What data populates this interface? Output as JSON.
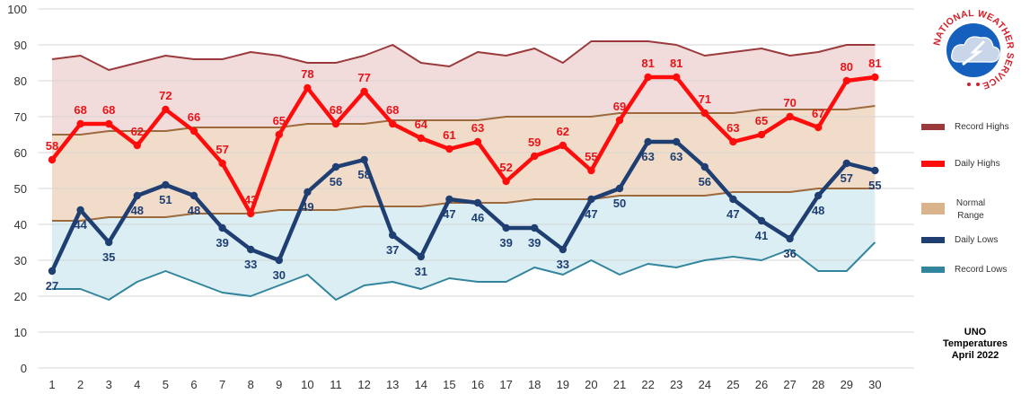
{
  "chart_data": {
    "type": "line",
    "x": [
      1,
      2,
      3,
      4,
      5,
      6,
      7,
      8,
      9,
      10,
      11,
      12,
      13,
      14,
      15,
      16,
      17,
      18,
      19,
      20,
      21,
      22,
      23,
      24,
      25,
      26,
      27,
      28,
      29,
      30
    ],
    "ylim": [
      0,
      100
    ],
    "yticks": [
      0,
      10,
      20,
      30,
      40,
      50,
      60,
      70,
      80,
      90,
      100
    ],
    "grid": true,
    "legend_position": "right",
    "series": [
      {
        "name": "Record Highs",
        "color": "#9b3a3c",
        "values": [
          86,
          87,
          83,
          85,
          87,
          86,
          86,
          88,
          87,
          85,
          85,
          87,
          90,
          85,
          84,
          88,
          87,
          89,
          85,
          91,
          91,
          91,
          90,
          87,
          88,
          89,
          87,
          88,
          90,
          90
        ]
      },
      {
        "name": "Daily Highs",
        "color": "#ff0d0d",
        "values": [
          58,
          68,
          68,
          62,
          72,
          66,
          57,
          43,
          65,
          78,
          68,
          77,
          68,
          64,
          61,
          63,
          52,
          59,
          62,
          55,
          69,
          81,
          81,
          71,
          63,
          65,
          70,
          67,
          80,
          81
        ]
      },
      {
        "name": "Normal Range",
        "color": "#d9b38c",
        "upper": [
          65,
          65,
          66,
          66,
          66,
          67,
          67,
          67,
          67,
          68,
          68,
          68,
          69,
          69,
          69,
          69,
          70,
          70,
          70,
          70,
          71,
          71,
          71,
          71,
          71,
          72,
          72,
          72,
          72,
          73
        ],
        "lower": [
          41,
          41,
          42,
          42,
          42,
          43,
          43,
          43,
          44,
          44,
          44,
          45,
          45,
          45,
          46,
          46,
          46,
          47,
          47,
          47,
          48,
          48,
          48,
          48,
          49,
          49,
          49,
          50,
          50,
          50
        ]
      },
      {
        "name": "Daily Lows",
        "color": "#1f3f73",
        "values": [
          27,
          44,
          35,
          48,
          51,
          48,
          39,
          33,
          30,
          49,
          56,
          58,
          37,
          31,
          47,
          46,
          39,
          39,
          33,
          47,
          50,
          63,
          63,
          56,
          47,
          41,
          36,
          48,
          57,
          55
        ]
      },
      {
        "name": "Record Lows",
        "color": "#31859c",
        "values": [
          22,
          22,
          19,
          24,
          27,
          24,
          21,
          20,
          23,
          26,
          19,
          23,
          24,
          22,
          25,
          24,
          24,
          28,
          26,
          30,
          26,
          29,
          28,
          30,
          31,
          30,
          33,
          27,
          27,
          35
        ]
      }
    ],
    "bands": {
      "record_fill": "#f2dcdb",
      "normal_fill": "#f0dcc8",
      "low_fill": "#dbeef4",
      "normal_line": "#9c6a3c"
    }
  },
  "legend": {
    "items": [
      {
        "label": "Record Highs",
        "color": "#9b3a3c"
      },
      {
        "label": "Daily Highs",
        "color": "#ff0d0d"
      },
      {
        "label": "Normal Range",
        "color": "#d9b38c"
      },
      {
        "label": "Daily Lows",
        "color": "#1f3f73"
      },
      {
        "label": "Record Lows",
        "color": "#31859c"
      }
    ]
  },
  "caption": {
    "line1": "UNO",
    "line2": "Temperatures",
    "line3": "April 2022"
  },
  "logo": {
    "name": "national-weather-service-logo",
    "text": "NATIONAL WEATHER SERVICE"
  }
}
